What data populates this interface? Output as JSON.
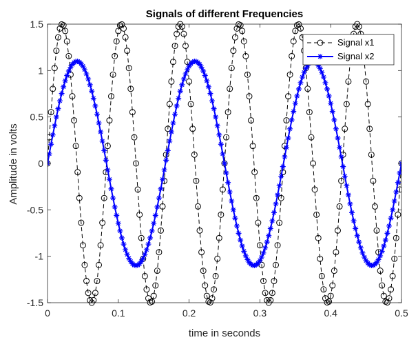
{
  "chart_data": {
    "type": "line",
    "title": "Signals of different Frequencies",
    "xlabel": "time in seconds",
    "ylabel": "Amplitude in volts",
    "xlim": [
      0,
      0.5
    ],
    "ylim": [
      -1.5,
      1.5
    ],
    "xticks": [
      0,
      0.1,
      0.2,
      0.3,
      0.4,
      0.5
    ],
    "xtick_labels": [
      "0",
      "0.1",
      "0.2",
      "0.3",
      "0.4",
      "0.5"
    ],
    "yticks": [
      -1.5,
      -1,
      -0.5,
      0,
      0.5,
      1,
      1.5
    ],
    "ytick_labels": [
      "-1.5",
      "-1",
      "-0.5",
      "0",
      "0.5",
      "1",
      "1.5"
    ],
    "grid": false,
    "legend_position": "top-right",
    "series": [
      {
        "name": "Signal x1",
        "color": "#000000",
        "line_style": "dashed",
        "marker": "circle",
        "amplitude": 1.5,
        "frequency_hz": 12,
        "x_start": 0,
        "x_end": 0.5,
        "x_step": 0.0025
      },
      {
        "name": "Signal x2",
        "color": "#0000ff",
        "line_style": "solid",
        "marker": "asterisk",
        "amplitude": 1.1,
        "frequency_hz": 6,
        "x_start": 0,
        "x_end": 0.5,
        "x_step": 0.0025
      }
    ]
  }
}
